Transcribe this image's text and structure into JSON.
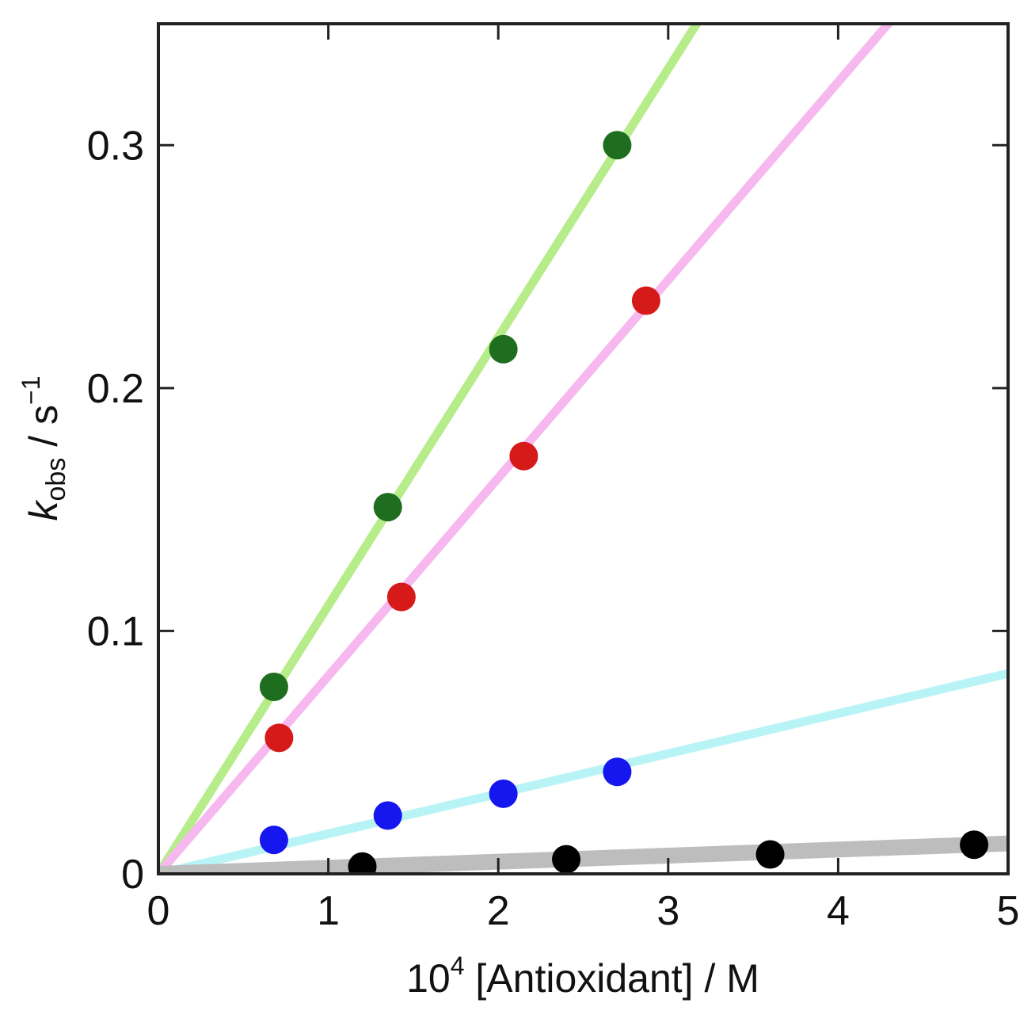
{
  "chart_data": {
    "type": "scatter",
    "xlabel": {
      "base": "10",
      "sup": "4",
      "rest": " [Antioxidant] / M"
    },
    "ylabel": {
      "symbol": "k",
      "sub": "obs",
      "rest": " / s",
      "sup": "−1"
    },
    "xlim": [
      0,
      5
    ],
    "ylim": [
      0,
      0.35
    ],
    "xticks": [
      0,
      1,
      2,
      3,
      4,
      5
    ],
    "yticks": [
      0,
      0.1,
      0.2,
      0.3
    ],
    "xtick_labels": [
      "0",
      "1",
      "2",
      "3",
      "4",
      "5"
    ],
    "ytick_labels": [
      "0",
      "0.1",
      "0.2",
      "0.3"
    ],
    "grid": false,
    "series": [
      {
        "color": "#1f6e1f",
        "fit_color": "#b6ec8a",
        "fit_slope": 0.1105,
        "points": [
          [
            0.68,
            0.077
          ],
          [
            1.35,
            0.151
          ],
          [
            2.03,
            0.216
          ],
          [
            2.7,
            0.3
          ]
        ]
      },
      {
        "color": "#d61a1a",
        "fit_color": "#f6b8ef",
        "fit_slope": 0.0815,
        "points": [
          [
            0.71,
            0.056
          ],
          [
            1.43,
            0.114
          ],
          [
            2.15,
            0.172
          ],
          [
            2.87,
            0.236
          ]
        ]
      },
      {
        "color": "#1616ee",
        "fit_color": "#b8f3f6",
        "fit_slope": 0.0165,
        "points": [
          [
            0.68,
            0.014
          ],
          [
            1.35,
            0.024
          ],
          [
            2.03,
            0.033
          ],
          [
            2.7,
            0.042
          ]
        ]
      },
      {
        "color": "#000000",
        "fit_color": "#bdbdbd",
        "fit_slope": 0.0025,
        "fit_width": 20,
        "points": [
          [
            1.2,
            0.003
          ],
          [
            2.4,
            0.006
          ],
          [
            3.6,
            0.008
          ],
          [
            4.8,
            0.012
          ]
        ]
      }
    ]
  }
}
